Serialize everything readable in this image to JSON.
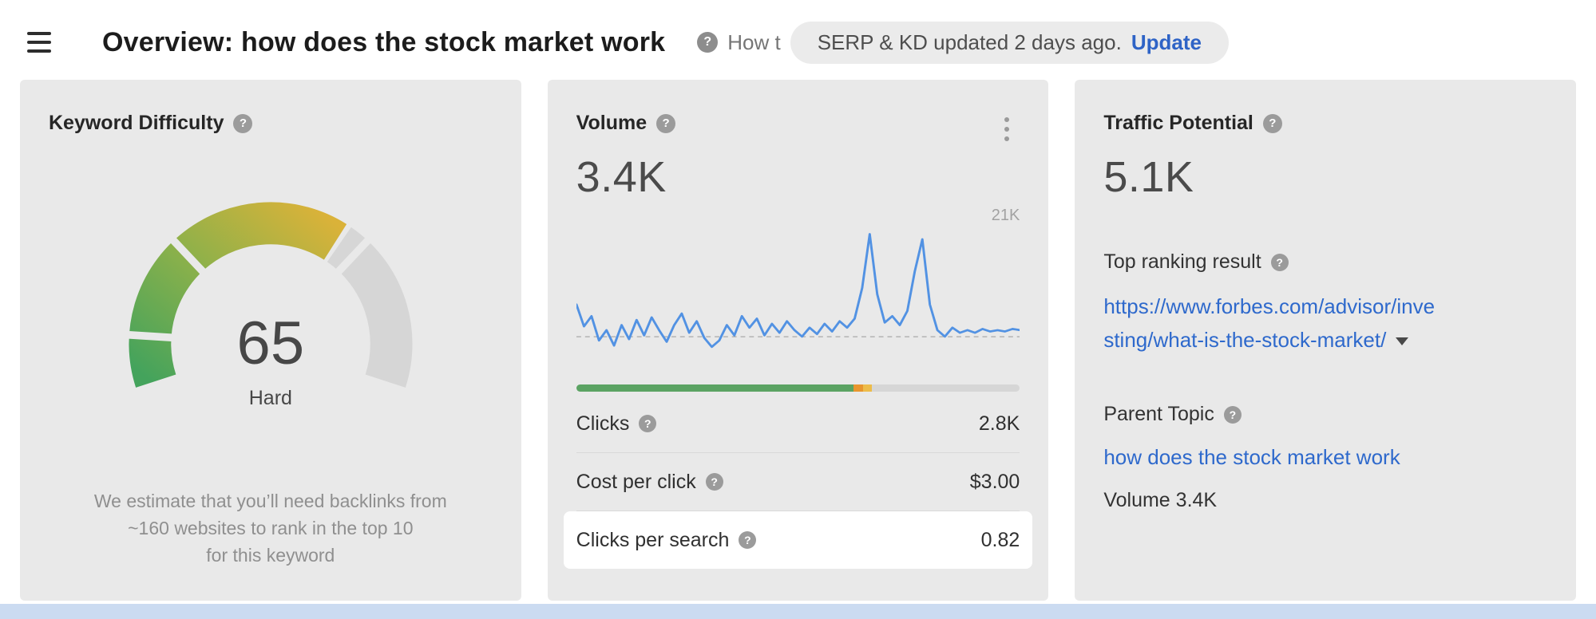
{
  "header": {
    "title": "Overview: how does the stock market work",
    "howto_label": "How t",
    "pill": {
      "text": "SERP & KD updated 2 days ago.",
      "action": "Update"
    }
  },
  "cards": {
    "keyword_difficulty": {
      "title": "Keyword Difficulty",
      "score": "65",
      "score_label": "Hard",
      "description_lines": [
        "We estimate that you’ll need backlinks from",
        "~160 websites to rank in the top 10",
        "for this keyword"
      ],
      "gauge": {
        "percent": 65,
        "start_angle": 198,
        "end_angle": -18,
        "segment_gaps_pct": [
          10,
          30,
          70
        ],
        "gradient": [
          "#44a35c",
          "#8db14a",
          "#dab239"
        ],
        "track_color": "#d6d6d6",
        "gap_color": "#e9e9e9"
      }
    },
    "volume": {
      "title": "Volume",
      "value": "3.4K",
      "chart_max_label": "21K",
      "chart_data": {
        "type": "line",
        "title": "Search volume trend",
        "y_max_label": "21K",
        "dashed_line_pct": 18,
        "line_color": "#5292e3",
        "values": [
          42,
          25,
          33,
          14,
          22,
          10,
          26,
          15,
          30,
          18,
          32,
          22,
          13,
          26,
          35,
          20,
          29,
          16,
          9,
          14,
          26,
          18,
          33,
          24,
          31,
          18,
          27,
          20,
          29,
          22,
          17,
          24,
          19,
          27,
          21,
          29,
          24,
          31,
          55,
          97,
          50,
          28,
          33,
          26,
          37,
          68,
          93,
          42,
          22,
          17,
          24,
          20,
          22,
          20,
          23,
          21,
          22,
          21,
          23,
          22
        ]
      },
      "bar_segments": [
        {
          "color": "#5ba363",
          "pct": 62.5
        },
        {
          "color": "#e8962e",
          "pct": 2.2
        },
        {
          "color": "#edbc4a",
          "pct": 2.0
        },
        {
          "color": "#d6d6d6",
          "pct": 33.3
        }
      ],
      "rows": [
        {
          "label": "Clicks",
          "value": "2.8K"
        },
        {
          "label": "Cost per click",
          "value": "$3.00"
        },
        {
          "label": "Clicks per search",
          "value": "0.82"
        }
      ]
    },
    "traffic_potential": {
      "title": "Traffic Potential",
      "value": "5.1K",
      "top_ranking_label": "Top ranking result",
      "url_lines": [
        "https://www.forbes.com/advisor/inve",
        "sting/what-is-the-stock-market/"
      ],
      "parent_topic_label": "Parent Topic",
      "parent_topic_link": "how does the stock market work",
      "volume_note": "Volume 3.4K"
    }
  },
  "colors": {
    "accent_blue": "#2e69cc",
    "card_bg": "#e9e9e9",
    "bottom_strip": "#cbdbf1"
  }
}
